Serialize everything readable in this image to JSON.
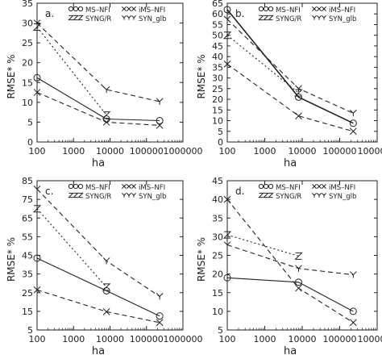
{
  "chart_data": [
    {
      "type": "line",
      "panel_label": "a.",
      "xlabel": "ha",
      "ylabel": "RMSE* %",
      "xscale": "log",
      "xlim": [
        100,
        1000000
      ],
      "ylim": [
        0,
        35
      ],
      "xticks": [
        "100",
        "1000",
        "10000",
        "100000",
        "1000000"
      ],
      "yticks": [
        "0",
        "5",
        "10",
        "15",
        "20",
        "25",
        "30",
        "35"
      ],
      "legend": "top",
      "series": [
        {
          "name": "MS–NFI",
          "marker": "O",
          "style": "solid",
          "x": [
            100,
            8000,
            230000
          ],
          "y": [
            16.2,
            5.8,
            5.4
          ]
        },
        {
          "name": "iMS–NFI",
          "marker": "X",
          "style": "dashed",
          "x": [
            100,
            8000,
            230000
          ],
          "y": [
            12.5,
            5.0,
            4.2
          ]
        },
        {
          "name": "SYNG/R",
          "marker": "Z",
          "style": "dotted",
          "x": [
            100,
            8000
          ],
          "y": [
            29.0,
            6.8
          ]
        },
        {
          "name": "SYN_glb",
          "marker": "Y",
          "style": "dashed",
          "x": [
            100,
            8000,
            230000
          ],
          "y": [
            30.0,
            13.2,
            10.2
          ]
        }
      ]
    },
    {
      "type": "line",
      "panel_label": "b.",
      "xlabel": "ha",
      "ylabel": "RMSE* %",
      "xscale": "log",
      "xlim": [
        100,
        1000000
      ],
      "ylim": [
        0,
        65
      ],
      "xticks": [
        "100",
        "1000",
        "10000",
        "100000",
        "1000000"
      ],
      "yticks": [
        "0",
        "5",
        "10",
        "15",
        "20",
        "25",
        "30",
        "35",
        "40",
        "45",
        "50",
        "55",
        "60",
        "65"
      ],
      "legend": "top",
      "series": [
        {
          "name": "MS–NFI",
          "marker": "O",
          "style": "solid",
          "x": [
            100,
            8000,
            230000
          ],
          "y": [
            62.0,
            21.0,
            8.8
          ]
        },
        {
          "name": "iMS–NFI",
          "marker": "X",
          "style": "dashed",
          "x": [
            100,
            8000,
            230000
          ],
          "y": [
            36.5,
            12.2,
            5.0
          ]
        },
        {
          "name": "SYNG/R",
          "marker": "Z",
          "style": "dotted",
          "x": [
            100,
            8000
          ],
          "y": [
            50.0,
            23.0
          ]
        },
        {
          "name": "SYN_glb",
          "marker": "Y",
          "style": "dashed",
          "x": [
            100,
            8000,
            230000
          ],
          "y": [
            57.5,
            25.0,
            13.5
          ]
        }
      ]
    },
    {
      "type": "line",
      "panel_label": "c.",
      "xlabel": "ha",
      "ylabel": "RMSE* %",
      "xscale": "log",
      "xlim": [
        100,
        1000000
      ],
      "ylim": [
        5,
        85
      ],
      "xticks": [
        "100",
        "1000",
        "10000",
        "100000",
        "1000000"
      ],
      "yticks": [
        "5",
        "15",
        "25",
        "35",
        "45",
        "55",
        "65",
        "75",
        "85"
      ],
      "legend": "top",
      "series": [
        {
          "name": "MS–NFI",
          "marker": "O",
          "style": "solid",
          "x": [
            100,
            8000,
            230000
          ],
          "y": [
            43.5,
            26.0,
            12.5
          ]
        },
        {
          "name": "iMS–NFI",
          "marker": "X",
          "style": "dashed",
          "x": [
            100,
            8000,
            230000
          ],
          "y": [
            26.5,
            14.8,
            9.0
          ]
        },
        {
          "name": "SYNG/R",
          "marker": "Z",
          "style": "dotted",
          "x": [
            100,
            8000
          ],
          "y": [
            70.0,
            28.0
          ]
        },
        {
          "name": "SYN_glb",
          "marker": "Y",
          "style": "dashed",
          "x": [
            100,
            8000,
            230000
          ],
          "y": [
            80.5,
            42.0,
            23.0
          ]
        }
      ]
    },
    {
      "type": "line",
      "panel_label": "d.",
      "xlabel": "ha",
      "ylabel": "RMSE* %",
      "xscale": "log",
      "xlim": [
        100,
        1000000
      ],
      "ylim": [
        5,
        45
      ],
      "xticks": [
        "100",
        "1000",
        "10000",
        "100000",
        "1000000"
      ],
      "yticks": [
        "5",
        "10",
        "15",
        "20",
        "25",
        "30",
        "35",
        "40",
        "45"
      ],
      "legend": "top",
      "series": [
        {
          "name": "MS–NFI",
          "marker": "O",
          "style": "solid",
          "x": [
            100,
            8000,
            230000
          ],
          "y": [
            19.0,
            17.8,
            10.0
          ]
        },
        {
          "name": "iMS–NFI",
          "marker": "X",
          "style": "dashed",
          "x": [
            100,
            8000,
            230000
          ],
          "y": [
            40.0,
            16.2,
            7.0
          ]
        },
        {
          "name": "SYNG/R",
          "marker": "Z",
          "style": "dotted",
          "x": [
            100,
            8000
          ],
          "y": [
            30.5,
            24.8
          ]
        },
        {
          "name": "SYN_glb",
          "marker": "Y",
          "style": "dashed",
          "x": [
            100,
            8000,
            230000
          ],
          "y": [
            27.8,
            21.5,
            19.8
          ]
        }
      ]
    }
  ]
}
